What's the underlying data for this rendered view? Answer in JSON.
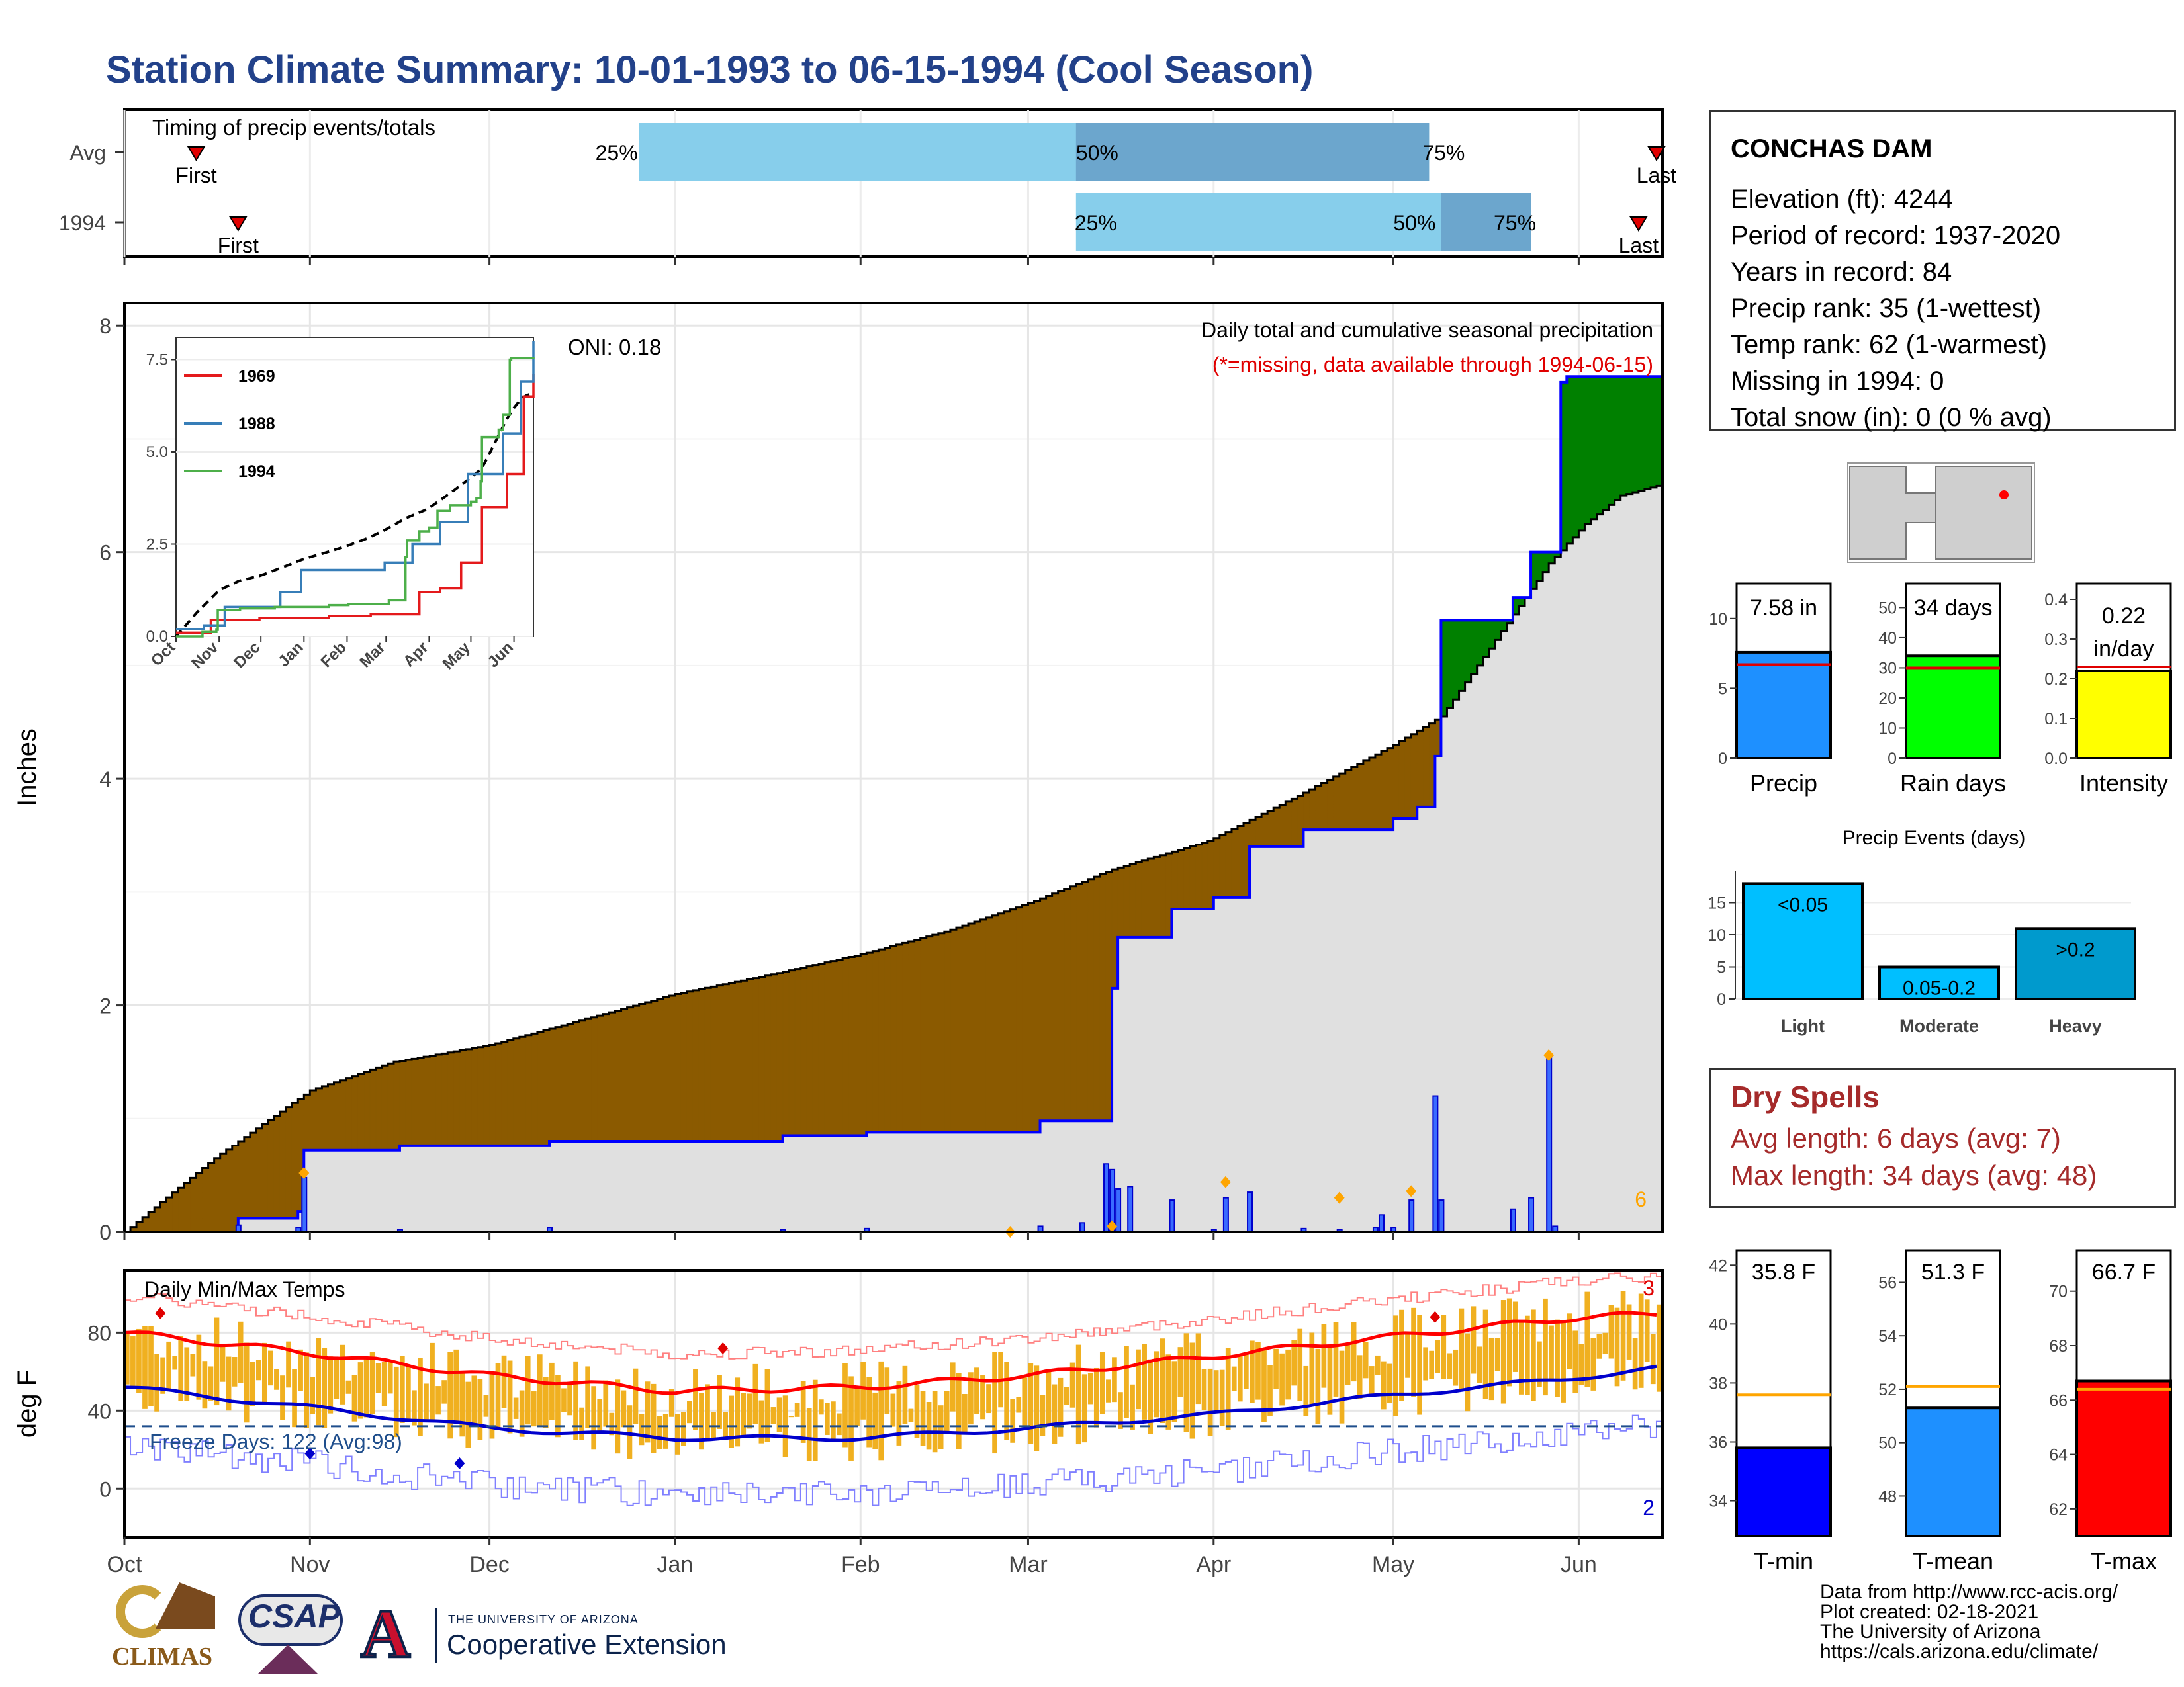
{
  "title": "Station Climate Summary: 10-01-1993 to 06-15-1994 (Cool Season)",
  "timing": {
    "label": "Timing of precip events/totals",
    "rows": [
      {
        "name": "Avg",
        "first": "First",
        "last": "Last",
        "p25": "25%",
        "p50": "50%",
        "p75": "75%",
        "first_day": 12,
        "p25_day": 86,
        "p50_day": 159,
        "p75_day": 218,
        "last_day": 256
      },
      {
        "name": "1994",
        "first": "First",
        "last": "Last",
        "p25": "25%",
        "p50": "50%",
        "p75": "75%",
        "first_day": 19,
        "p25_day": 159,
        "p50_day": 220,
        "p75_day": 235,
        "last_day": 253
      }
    ],
    "colors": {
      "outer": "#87ceeb",
      "inner": "#6ca6cd"
    }
  },
  "main": {
    "ylabel": "Inches",
    "yticks": [
      "0",
      "2",
      "4",
      "6",
      "8"
    ],
    "oni": "ONI: 0.18",
    "caption": "Daily total and cumulative seasonal precipitation",
    "missing_note": "(*=missing, data available through 1994-06-15)",
    "count_label": "6",
    "colors": {
      "below_avg": "#8b5a00",
      "above_avg": "#008000",
      "avg_fill": "#e0e0e0",
      "line": "#0000ff",
      "marker": "#ffa500"
    }
  },
  "inset": {
    "yticks": [
      "0.0",
      "2.5",
      "5.0",
      "7.5"
    ],
    "xticks": [
      "Oct",
      "Nov",
      "Dec",
      "Jan",
      "Feb",
      "Mar",
      "Apr",
      "May",
      "Jun"
    ],
    "legend": [
      {
        "name": "1969",
        "color": "#e41a1c"
      },
      {
        "name": "1988",
        "color": "#377eb8"
      },
      {
        "name": "1994",
        "color": "#4daf4a"
      }
    ]
  },
  "temps": {
    "label": "Daily Min/Max Temps",
    "ylabel": "deg F",
    "yticks": [
      "0",
      "40",
      "80"
    ],
    "freeze_label": "Freeze Days: 122 (Avg:98)",
    "max_count": "3",
    "min_count": "2",
    "colors": {
      "bar": "#f0b020",
      "max_line": "#ff0000",
      "min_line": "#0000cc",
      "freeze": "#1f4e8c"
    }
  },
  "months": [
    "Oct",
    "Nov",
    "Dec",
    "Jan",
    "Feb",
    "Mar",
    "Apr",
    "May",
    "Jun"
  ],
  "station": {
    "name": "CONCHAS DAM",
    "lines": [
      "Elevation (ft): 4244",
      "Period of record: 1937-2020",
      "Years in record: 84",
      "Precip rank: 35 (1-wettest)",
      "Temp rank: 62 (1-warmest)",
      "Missing in 1994: 0",
      "Total snow (in): 0 (0 % avg)"
    ]
  },
  "summary_bars": [
    {
      "label": "Precip",
      "value_text": "7.58 in",
      "value": 7.58,
      "avg": 6.7,
      "ymax": 12.5,
      "ticks": [
        "0",
        "5",
        "10"
      ],
      "tickvals": [
        0,
        5,
        10
      ],
      "color": "#1e90ff"
    },
    {
      "label": "Rain days",
      "value_text": "34 days",
      "value": 34,
      "avg": 30,
      "ymax": 58,
      "ticks": [
        "0",
        "10",
        "20",
        "30",
        "40",
        "50"
      ],
      "tickvals": [
        0,
        10,
        20,
        30,
        40,
        50
      ],
      "color": "#00ff00"
    },
    {
      "label": "Intensity",
      "value_text": "0.22 in/day",
      "value": 0.22,
      "avg": 0.23,
      "ymax": 0.44,
      "ticks": [
        "0.0",
        "0.1",
        "0.2",
        "0.3",
        "0.4"
      ],
      "tickvals": [
        0,
        0.1,
        0.2,
        0.3,
        0.4
      ],
      "color": "#ffff00"
    }
  ],
  "events": {
    "title": "Precip Events (days)",
    "yticks": [
      "0",
      "5",
      "10",
      "15"
    ],
    "bars": [
      {
        "label": "Light",
        "tag": "<0.05",
        "value": 18,
        "color": "#00bfff"
      },
      {
        "label": "Moderate",
        "tag": "0.05-0.2",
        "value": 5,
        "color": "#00bfff"
      },
      {
        "label": "Heavy",
        "tag": ">0.2",
        "value": 11,
        "color": "#009acd"
      }
    ]
  },
  "dry_spells": {
    "title": "Dry Spells",
    "avg": "Avg length: 6 days (avg: 7)",
    "max": "Max length: 34 days (avg: 48)"
  },
  "temp_bars": [
    {
      "label": "T-min",
      "value_text": "35.8 F",
      "value": 35.8,
      "avg": 37.6,
      "ymin": 32.8,
      "ymax": 42.5,
      "ticks": [
        "34",
        "36",
        "38",
        "40",
        "42"
      ],
      "tickvals": [
        34,
        36,
        38,
        40,
        42
      ],
      "color": "#0000ff"
    },
    {
      "label": "T-mean",
      "value_text": "51.3 F",
      "value": 51.3,
      "avg": 52.1,
      "ymin": 46.5,
      "ymax": 57.2,
      "ticks": [
        "48",
        "50",
        "52",
        "54",
        "56"
      ],
      "tickvals": [
        48,
        50,
        52,
        54,
        56
      ],
      "color": "#1e90ff"
    },
    {
      "label": "T-max",
      "value_text": "66.7 F",
      "value": 66.7,
      "avg": 66.4,
      "ymin": 61.0,
      "ymax": 71.5,
      "ticks": [
        "62",
        "64",
        "66",
        "68",
        "70"
      ],
      "tickvals": [
        62,
        64,
        66,
        68,
        70
      ],
      "color": "#ff0000"
    }
  ],
  "credits": [
    "Data from http://www.rcc-acis.org/",
    "Plot created: 02-18-2021",
    "The University of Arizona",
    "https://cals.arizona.edu/climate/"
  ],
  "logos": {
    "climas": "CLIMAS",
    "csap": "CSAP",
    "ua_small": "THE UNIVERSITY OF ARIZONA",
    "ua_big": "Cooperative Extension",
    "ua_letter": "A"
  },
  "chart_data": {
    "type": "area",
    "title": "Station Climate Summary: 10-01-1993 to 06-15-1994 (Cool Season)",
    "ylabel": "Inches",
    "ylim": [
      0,
      8.2
    ],
    "x_units": "days since 10-01-1993",
    "avg_cumulative": {
      "x": [
        0,
        15,
        31,
        45,
        61,
        75,
        92,
        106,
        123,
        137,
        151,
        165,
        181,
        196,
        212,
        220,
        226,
        232,
        238,
        244,
        250,
        257
      ],
      "y": [
        0,
        0.65,
        1.25,
        1.5,
        1.65,
        1.85,
        2.1,
        2.25,
        2.45,
        2.65,
        2.9,
        3.2,
        3.45,
        3.85,
        4.3,
        4.55,
        5.0,
        5.45,
        5.9,
        6.25,
        6.5,
        6.6
      ]
    },
    "obs_cumulative": {
      "x": [
        0,
        19,
        29,
        30,
        46,
        71,
        110,
        124,
        153,
        165,
        166,
        175,
        182,
        188,
        197,
        212,
        216,
        219,
        220,
        232,
        235,
        240,
        241,
        257
      ],
      "y": [
        0,
        0.12,
        0.18,
        0.72,
        0.76,
        0.8,
        0.85,
        0.88,
        0.98,
        2.15,
        2.6,
        2.85,
        2.95,
        3.4,
        3.55,
        3.65,
        3.75,
        4.2,
        5.4,
        5.6,
        6.0,
        7.5,
        7.55,
        7.58
      ]
    },
    "daily_precip": {
      "x": [
        19,
        29,
        30,
        46,
        71,
        110,
        124,
        153,
        160,
        164,
        165,
        166,
        168,
        175,
        182,
        184,
        188,
        197,
        203,
        209,
        210,
        212,
        215,
        219,
        220,
        232,
        235,
        238,
        239,
        240
      ],
      "y": [
        0.06,
        0.04,
        0.48,
        0.02,
        0.04,
        0.02,
        0.03,
        0.05,
        0.08,
        0.6,
        0.55,
        0.38,
        0.4,
        0.28,
        0.02,
        0.3,
        0.35,
        0.03,
        0.02,
        0.04,
        0.15,
        0.04,
        0.28,
        1.2,
        0.28,
        0.2,
        0.3,
        1.55,
        0.05,
        0.0
      ]
    },
    "temps": {
      "ylim": [
        -25,
        112
      ],
      "avg_max": {
        "x": [
          0,
          30,
          61,
          92,
          123,
          151,
          182,
          212,
          240,
          257
        ],
        "y": [
          80,
          70,
          58,
          50,
          52,
          58,
          68,
          78,
          87,
          90
        ]
      },
      "avg_min": {
        "x": [
          0,
          30,
          61,
          92,
          123,
          151,
          182,
          212,
          240,
          257
        ],
        "y": [
          52,
          42,
          31,
          26,
          26,
          31,
          38,
          48,
          56,
          62
        ]
      },
      "freeze_line": 32
    }
  }
}
